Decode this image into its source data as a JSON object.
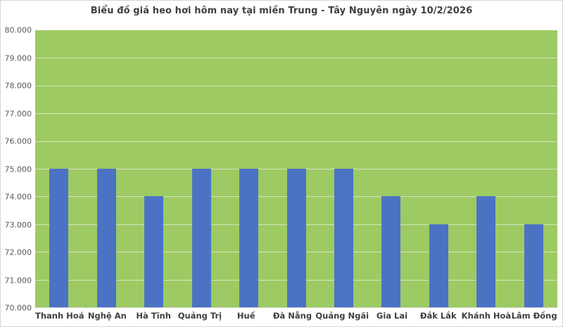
{
  "title": "Biểu đồ giá heo hơi hôm nay tại miền Trung - Tây Nguyên ngày 10/2/2026",
  "chart_data": {
    "type": "bar",
    "title": "Biểu đồ giá heo hơi hôm nay tại miền Trung - Tây Nguyên ngày 10/2/2026",
    "categories": [
      "Thanh Hoá",
      "Nghệ An",
      "Hà Tĩnh",
      "Quảng Trị",
      "Huế",
      "Đà Nẵng",
      "Quảng Ngãi",
      "Gia Lai",
      "Đắk Lắk",
      "Khánh Hoà",
      "Lâm Đồng"
    ],
    "values": [
      75000,
      75000,
      74000,
      75000,
      75000,
      75000,
      75000,
      74000,
      73000,
      74000,
      73000
    ],
    "xlabel": "",
    "ylabel": "",
    "ylim": [
      70000,
      80000
    ],
    "ytick_step": 1000,
    "ytick_labels": [
      "80.000",
      "79.000",
      "78.000",
      "77.000",
      "76.000",
      "75.000",
      "74.000",
      "73.000",
      "72.000",
      "71.000",
      "70.000"
    ],
    "grid": true,
    "legend": false,
    "colors": {
      "bar": "#4c72c4",
      "plot_background": "#9dca63",
      "gridline": "#d5e5bd",
      "axis_line": "#d9d9d9",
      "chart_background": "#ffffff",
      "chart_border": "#d6d6d6",
      "title_text": "#3f3f3f",
      "tick_text": "#595959",
      "category_text": "#3f3f3f"
    }
  }
}
